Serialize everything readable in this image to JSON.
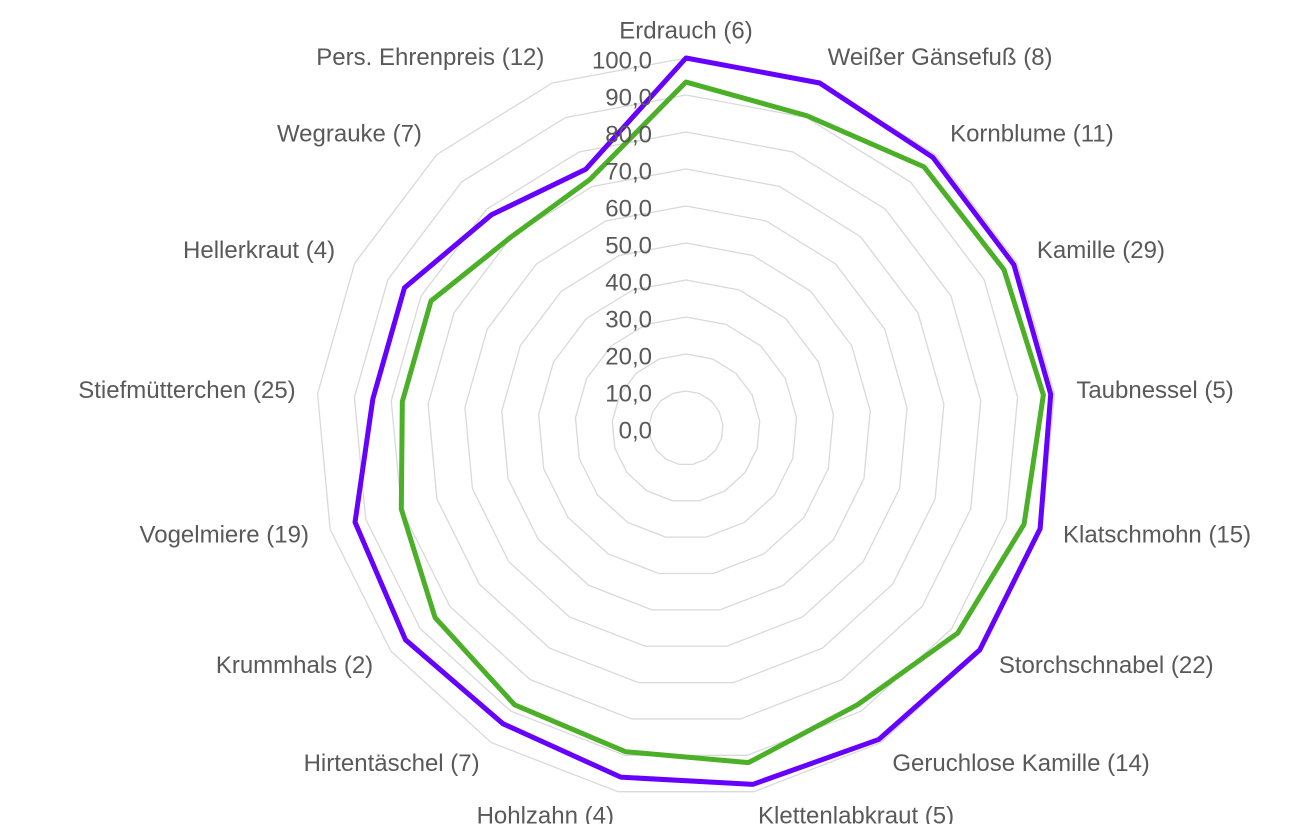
{
  "chart_data": {
    "type": "radar",
    "categories": [
      "Erdrauch (6)",
      "Weißer Gänsefuß (8)",
      "Kornblume (11)",
      "Kamille (29)",
      "Taubnessel (5)",
      "Klatschmohn (15)",
      "Storchschnabel (22)",
      "Geruchlose Kamille (14)",
      "Klettenlabkraut (5)",
      "Hohlzahn (4)",
      "Hirtentäschel (7)",
      "Krummhals (2)",
      "Vogelmiere (19)",
      "Stiefmütterchen (25)",
      "Hellerkraut (4)",
      "Wegrauke (7)",
      "Pers. Ehrenpreis (12)"
    ],
    "series": [
      {
        "color": "#6600ff",
        "values": [
          100,
          100,
          99,
          99,
          99,
          99.5,
          99.5,
          99,
          98,
          96,
          94,
          95,
          93,
          85,
          85,
          78,
          75
        ]
      },
      {
        "color": "#4caf28",
        "values": [
          93.5,
          90.5,
          95.5,
          96,
          97,
          95,
          92,
          88,
          92,
          89,
          88,
          85,
          80,
          77,
          77,
          70,
          72
        ]
      }
    ],
    "ylim": [
      0,
      100
    ],
    "yticks": [
      {
        "value": 0,
        "label": "0,0"
      },
      {
        "value": 10,
        "label": "10,0"
      },
      {
        "value": 20,
        "label": "20,0"
      },
      {
        "value": 30,
        "label": "30,0"
      },
      {
        "value": 40,
        "label": "40,0"
      },
      {
        "value": 50,
        "label": "50,0"
      },
      {
        "value": 60,
        "label": "60,0"
      },
      {
        "value": 70,
        "label": "70,0"
      },
      {
        "value": 80,
        "label": "80,0"
      },
      {
        "value": 90,
        "label": "90,0"
      },
      {
        "value": 100,
        "label": "100,0"
      }
    ],
    "grid": true
  }
}
